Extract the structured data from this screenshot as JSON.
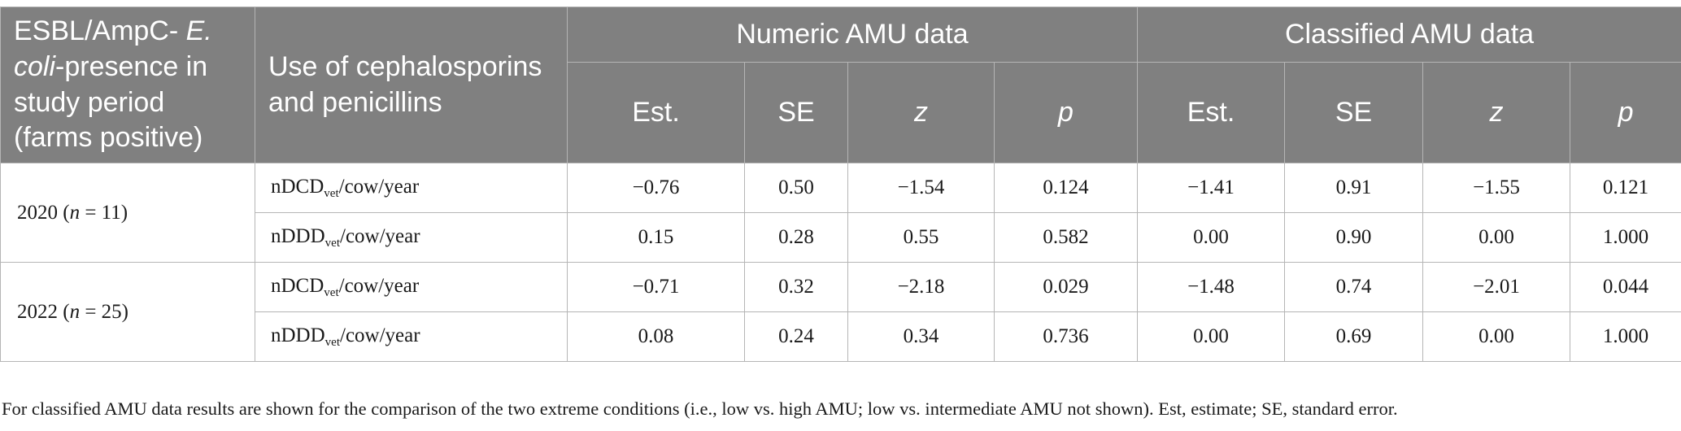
{
  "header": {
    "col1": {
      "part1": "ESBL/AmpC- ",
      "italic": "E. coli",
      "part2": "-presence in study period (farms positive)"
    },
    "col2": "Use of cephalosporins and penicillins",
    "group_numeric": "Numeric AMU data",
    "group_classified": "Classified AMU data",
    "sub": {
      "est": "Est.",
      "se": "SE",
      "z": "z",
      "p": "p"
    }
  },
  "groups": [
    {
      "year": "2020 (",
      "n_sym": "n",
      "n_val": " = 11)",
      "rows": [
        {
          "unit_pre": "nDCD",
          "unit_sub": "vet",
          "unit_post": "/cow/year",
          "num": {
            "est": "−0.76",
            "se": "0.50",
            "z": "−1.54",
            "p": "0.124"
          },
          "cls": {
            "est": "−1.41",
            "se": "0.91",
            "z": "−1.55",
            "p": "0.121"
          }
        },
        {
          "unit_pre": "nDDD",
          "unit_sub": "vet",
          "unit_post": "/cow/year",
          "num": {
            "est": "0.15",
            "se": "0.28",
            "z": "0.55",
            "p": "0.582"
          },
          "cls": {
            "est": "0.00",
            "se": "0.90",
            "z": "0.00",
            "p": "1.000"
          }
        }
      ]
    },
    {
      "year": "2022 (",
      "n_sym": "n",
      "n_val": " = 25)",
      "rows": [
        {
          "unit_pre": "nDCD",
          "unit_sub": "vet",
          "unit_post": "/cow/year",
          "num": {
            "est": "−0.71",
            "se": "0.32",
            "z": "−2.18",
            "p": "0.029"
          },
          "cls": {
            "est": "−1.48",
            "se": "0.74",
            "z": "−2.01",
            "p": "0.044"
          }
        },
        {
          "unit_pre": "nDDD",
          "unit_sub": "vet",
          "unit_post": "/cow/year",
          "num": {
            "est": "0.08",
            "se": "0.24",
            "z": "0.34",
            "p": "0.736"
          },
          "cls": {
            "est": "0.00",
            "se": "0.69",
            "z": "0.00",
            "p": "1.000"
          }
        }
      ]
    }
  ],
  "footnote": "For classified AMU data results are shown for the comparison of the two extreme conditions (i.e., low vs. high AMU; low vs. intermediate AMU not shown). Est, estimate; SE, standard error."
}
